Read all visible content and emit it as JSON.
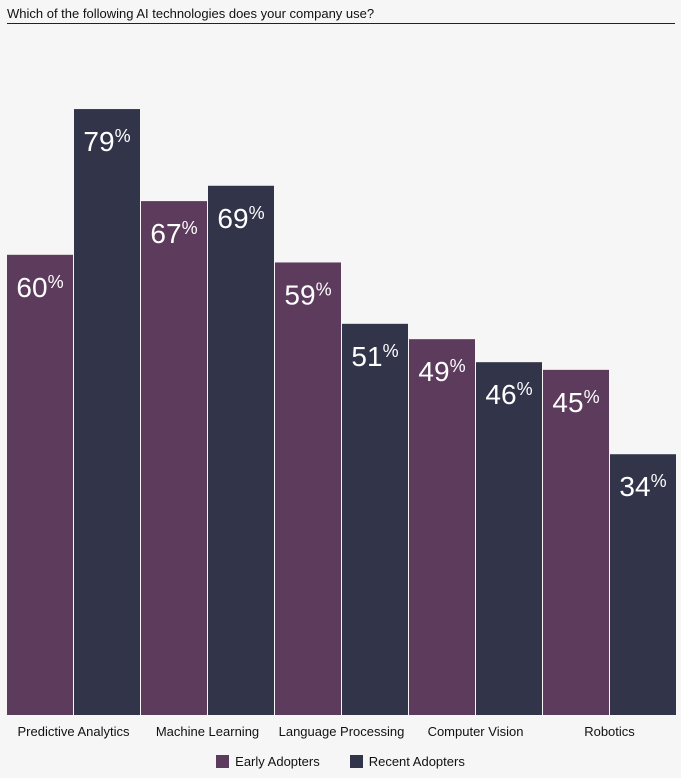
{
  "chart_data": {
    "type": "bar",
    "title": "Which of the following AI technologies does your company use?",
    "categories": [
      "Predictive Analytics",
      "Machine Learning",
      "Language Processing",
      "Computer Vision",
      "Robotics"
    ],
    "series": [
      {
        "name": "Early Adopters",
        "values": [
          60,
          67,
          59,
          49,
          45
        ],
        "color": "#5d3b5c"
      },
      {
        "name": "Recent Adopters",
        "values": [
          79,
          69,
          51,
          46,
          34
        ],
        "color": "#32344a"
      }
    ],
    "value_suffix": "%",
    "ylim": [
      0,
      100
    ],
    "grid": false,
    "legend": "bottom"
  }
}
